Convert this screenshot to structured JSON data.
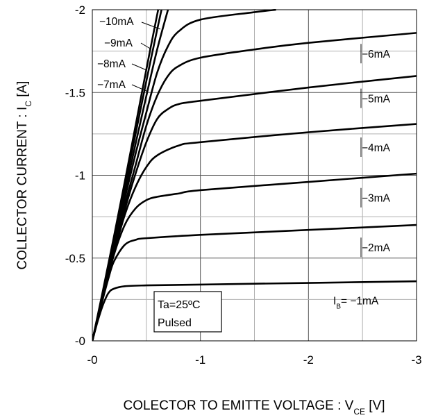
{
  "chart_data": {
    "type": "line",
    "xlabel": "COLECTOR TO EMITTE VOLTAGE : VCE [V]",
    "xlabel_main": "COLECTOR TO EMITTE VOLTAGE : V",
    "xlabel_sub": "CE",
    "xlabel_unit": " [V]",
    "ylabel": "COLLECTOR CURRENT : IC [A]",
    "ylabel_main": "COLLECTOR CURRENT : I",
    "ylabel_sub": "C",
    "ylabel_unit": " [A]",
    "xlim": [
      0,
      -3
    ],
    "ylim": [
      0,
      -2
    ],
    "x_ticks": [
      {
        "value": 0,
        "label": "-0"
      },
      {
        "value": -1,
        "label": "-1"
      },
      {
        "value": -2,
        "label": "-2"
      },
      {
        "value": -3,
        "label": "-3"
      }
    ],
    "y_ticks": [
      {
        "value": 0,
        "label": "-0"
      },
      {
        "value": -0.5,
        "label": "-0.5"
      },
      {
        "value": -1,
        "label": "-1"
      },
      {
        "value": -1.5,
        "label": "-1.5"
      },
      {
        "value": -2,
        "label": "-2"
      }
    ],
    "grid": true,
    "annotation": {
      "line1": "Ta=25ºC",
      "line2": "Pulsed"
    },
    "series": [
      {
        "label": "−1mA",
        "label_prefix": "I",
        "label_sub": "B",
        "label_eq": "= ",
        "points": [
          [
            0,
            0
          ],
          [
            -0.05,
            -0.12
          ],
          [
            -0.1,
            -0.22
          ],
          [
            -0.15,
            -0.29
          ],
          [
            -0.2,
            -0.315
          ],
          [
            -0.3,
            -0.33
          ],
          [
            -0.5,
            -0.335
          ],
          [
            -1,
            -0.34
          ],
          [
            -2,
            -0.35
          ],
          [
            -3,
            -0.36
          ]
        ]
      },
      {
        "label": "−2mA",
        "points": [
          [
            0,
            0
          ],
          [
            -0.05,
            -0.13
          ],
          [
            -0.1,
            -0.26
          ],
          [
            -0.15,
            -0.38
          ],
          [
            -0.2,
            -0.48
          ],
          [
            -0.3,
            -0.58
          ],
          [
            -0.4,
            -0.61
          ],
          [
            -0.5,
            -0.62
          ],
          [
            -1,
            -0.64
          ],
          [
            -2,
            -0.67
          ],
          [
            -3,
            -0.7
          ]
        ]
      },
      {
        "label": "−3mA",
        "points": [
          [
            0,
            0
          ],
          [
            -0.05,
            -0.13
          ],
          [
            -0.1,
            -0.27
          ],
          [
            -0.2,
            -0.52
          ],
          [
            -0.3,
            -0.7
          ],
          [
            -0.4,
            -0.8
          ],
          [
            -0.5,
            -0.85
          ],
          [
            -0.6,
            -0.87
          ],
          [
            -0.8,
            -0.89
          ],
          [
            -1,
            -0.91
          ],
          [
            -2,
            -0.96
          ],
          [
            -3,
            -1.01
          ]
        ]
      },
      {
        "label": "−4mA",
        "points": [
          [
            0,
            0
          ],
          [
            -0.1,
            -0.27
          ],
          [
            -0.2,
            -0.53
          ],
          [
            -0.3,
            -0.76
          ],
          [
            -0.4,
            -0.93
          ],
          [
            -0.5,
            -1.05
          ],
          [
            -0.6,
            -1.12
          ],
          [
            -0.8,
            -1.18
          ],
          [
            -1,
            -1.2
          ],
          [
            -2,
            -1.26
          ],
          [
            -3,
            -1.31
          ]
        ]
      },
      {
        "label": "−5mA",
        "points": [
          [
            0,
            0
          ],
          [
            -0.1,
            -0.27
          ],
          [
            -0.2,
            -0.54
          ],
          [
            -0.3,
            -0.79
          ],
          [
            -0.4,
            -1.01
          ],
          [
            -0.5,
            -1.2
          ],
          [
            -0.6,
            -1.34
          ],
          [
            -0.7,
            -1.4
          ],
          [
            -0.8,
            -1.43
          ],
          [
            -1,
            -1.45
          ],
          [
            -2,
            -1.53
          ],
          [
            -3,
            -1.6
          ]
        ]
      },
      {
        "label": "−6mA",
        "points": [
          [
            0,
            0
          ],
          [
            -0.1,
            -0.27
          ],
          [
            -0.2,
            -0.55
          ],
          [
            -0.3,
            -0.82
          ],
          [
            -0.4,
            -1.06
          ],
          [
            -0.5,
            -1.3
          ],
          [
            -0.6,
            -1.48
          ],
          [
            -0.7,
            -1.6
          ],
          [
            -0.8,
            -1.66
          ],
          [
            -1,
            -1.71
          ],
          [
            -1.5,
            -1.76
          ],
          [
            -2,
            -1.8
          ],
          [
            -3,
            -1.86
          ]
        ]
      },
      {
        "label": "−7mA",
        "points": [
          [
            0,
            0
          ],
          [
            -0.1,
            -0.28
          ],
          [
            -0.2,
            -0.57
          ],
          [
            -0.3,
            -0.86
          ],
          [
            -0.4,
            -1.13
          ],
          [
            -0.5,
            -1.38
          ],
          [
            -0.6,
            -1.62
          ],
          [
            -0.7,
            -1.78
          ],
          [
            -0.8,
            -1.87
          ],
          [
            -1,
            -1.94
          ],
          [
            -1.5,
            -1.985
          ],
          [
            -1.7,
            -2.0
          ]
        ]
      },
      {
        "label": "−8mA",
        "points": [
          [
            0,
            0
          ],
          [
            -0.1,
            -0.29
          ],
          [
            -0.2,
            -0.59
          ],
          [
            -0.3,
            -0.89
          ],
          [
            -0.4,
            -1.19
          ],
          [
            -0.5,
            -1.48
          ],
          [
            -0.6,
            -1.76
          ],
          [
            -0.7,
            -2.0
          ]
        ]
      },
      {
        "label": "−9mA",
        "points": [
          [
            0,
            0
          ],
          [
            -0.1,
            -0.3
          ],
          [
            -0.2,
            -0.61
          ],
          [
            -0.3,
            -0.93
          ],
          [
            -0.4,
            -1.25
          ],
          [
            -0.5,
            -1.57
          ],
          [
            -0.6,
            -1.88
          ],
          [
            -0.64,
            -2.0
          ]
        ]
      },
      {
        "label": "−10mA",
        "points": [
          [
            0,
            0
          ],
          [
            -0.1,
            -0.31
          ],
          [
            -0.2,
            -0.63
          ],
          [
            -0.3,
            -0.96
          ],
          [
            -0.4,
            -1.3
          ],
          [
            -0.5,
            -1.64
          ],
          [
            -0.6,
            -1.97
          ],
          [
            -0.61,
            -2.0
          ]
        ]
      }
    ]
  }
}
